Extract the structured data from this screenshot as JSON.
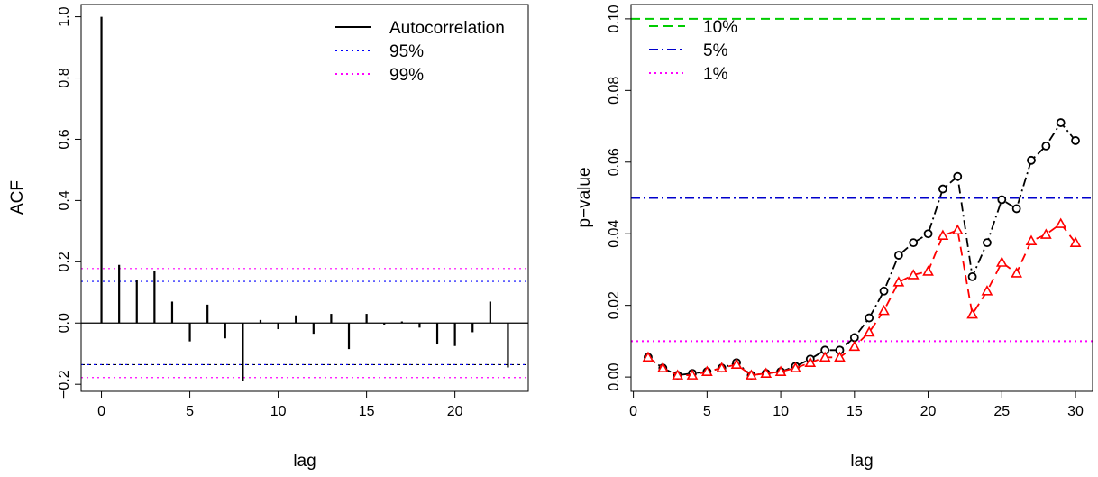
{
  "chart_data": [
    {
      "type": "bar",
      "subtype": "acf-stem",
      "xlabel": "lag",
      "ylabel": "ACF",
      "xlim": [
        -1.15,
        24.15
      ],
      "ylim": [
        -0.223,
        1.04
      ],
      "xticks": [
        0,
        5,
        10,
        15,
        20
      ],
      "yticks": [
        -0.2,
        0.0,
        0.2,
        0.4,
        0.6,
        0.8,
        1.0
      ],
      "ytick_labels": [
        "−0.2",
        "0.0",
        "0.2",
        "0.4",
        "0.6",
        "0.8",
        "1.0"
      ],
      "legend_position": "top-right",
      "lags": [
        0,
        1,
        2,
        3,
        4,
        5,
        6,
        7,
        8,
        9,
        10,
        11,
        12,
        13,
        14,
        15,
        16,
        17,
        18,
        19,
        20,
        21,
        22,
        23
      ],
      "values": [
        1.0,
        0.19,
        0.14,
        0.17,
        0.07,
        -0.06,
        0.06,
        -0.05,
        -0.19,
        0.01,
        -0.02,
        0.025,
        -0.035,
        0.03,
        -0.085,
        0.03,
        -0.005,
        0.005,
        -0.015,
        -0.07,
        -0.075,
        -0.03,
        0.07,
        -0.145
      ],
      "zero_line": 0,
      "bands": [
        {
          "name": "95%",
          "value": 0.136,
          "color": "#0000ff",
          "style": "dotted",
          "symmetric": true
        },
        {
          "name": "99%",
          "value": 0.178,
          "color": "#ff00ff",
          "style": "dotted",
          "symmetric": true
        }
      ],
      "series": [
        {
          "name": "Autocorrelation",
          "color": "#000000",
          "style": "solid"
        }
      ],
      "lower_black_line": -0.136
    },
    {
      "type": "line",
      "xlabel": "lag",
      "ylabel": "p−value",
      "xlim": [
        -0.16,
        31.16
      ],
      "ylim": [
        -0.004,
        0.104
      ],
      "xticks": [
        0,
        5,
        10,
        15,
        20,
        25,
        30
      ],
      "yticks": [
        0.0,
        0.02,
        0.04,
        0.06,
        0.08,
        0.1
      ],
      "ytick_labels": [
        "0.00",
        "0.02",
        "0.04",
        "0.06",
        "0.08",
        "0.10"
      ],
      "legend_position": "top-left",
      "reference_lines": [
        {
          "name": "10%",
          "value": 0.1,
          "color": "#00cc00",
          "style": "dashed"
        },
        {
          "name": "5%",
          "value": 0.05,
          "color": "#0000cc",
          "style": "dashdot"
        },
        {
          "name": "1%",
          "value": 0.01,
          "color": "#ff00ff",
          "style": "dotted"
        }
      ],
      "x": [
        1,
        2,
        3,
        4,
        5,
        6,
        7,
        8,
        9,
        10,
        11,
        12,
        13,
        14,
        15,
        16,
        17,
        18,
        19,
        20,
        21,
        22,
        23,
        24,
        25,
        26,
        27,
        28,
        29,
        30
      ],
      "series": [
        {
          "color": "#000000",
          "marker": "circle",
          "style": "dashdot",
          "values": [
            0.0055,
            0.0025,
            0.0005,
            0.001,
            0.0015,
            0.0025,
            0.004,
            0.0005,
            0.001,
            0.0015,
            0.003,
            0.005,
            0.0075,
            0.0075,
            0.011,
            0.0165,
            0.024,
            0.034,
            0.0375,
            0.04,
            0.0525,
            0.056,
            0.028,
            0.0375,
            0.0495,
            0.047,
            0.0605,
            0.0645,
            0.071,
            0.066
          ]
        },
        {
          "color": "#ff0000",
          "marker": "triangle",
          "style": "dashed",
          "values": [
            0.0055,
            0.0025,
            0.0005,
            0.0005,
            0.0015,
            0.0025,
            0.0035,
            0.0005,
            0.001,
            0.0015,
            0.0025,
            0.004,
            0.0055,
            0.0055,
            0.0085,
            0.0125,
            0.0185,
            0.0265,
            0.0285,
            0.0295,
            0.0395,
            0.041,
            0.0175,
            0.024,
            0.032,
            0.029,
            0.038,
            0.0398,
            0.0428,
            0.0375
          ]
        }
      ]
    }
  ]
}
